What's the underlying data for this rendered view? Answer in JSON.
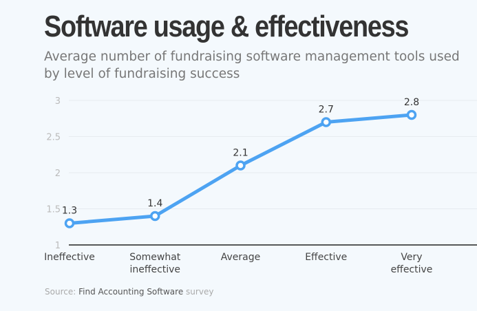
{
  "title": "Software usage & effectiveness",
  "subtitle": "Average number of fundraising software management tools used by level of fundraising success",
  "source": {
    "prefix": "Source:",
    "name": "Find Accounting Software",
    "suffix": "survey"
  },
  "chart_data": {
    "type": "line",
    "categories": [
      [
        "Ineffective"
      ],
      [
        "Somewhat",
        "ineffective"
      ],
      [
        "Average"
      ],
      [
        "Effective"
      ],
      [
        "Very",
        "effective"
      ]
    ],
    "values": [
      1.3,
      1.4,
      2.1,
      2.7,
      2.8
    ],
    "data_labels": [
      "1.3",
      "1.4",
      "2.1",
      "2.7",
      "2.8"
    ],
    "yticks": [
      "1",
      "1.5",
      "2",
      "2.5",
      "3"
    ],
    "ylim": [
      1,
      3
    ],
    "grid": true,
    "line_color": "#4da3f2"
  }
}
